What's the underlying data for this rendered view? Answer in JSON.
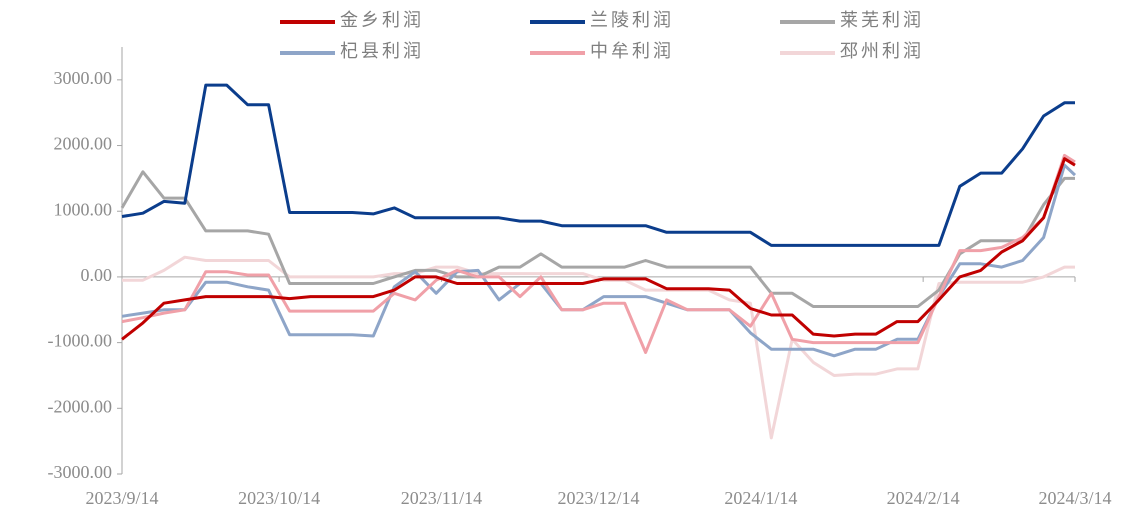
{
  "chart_data": {
    "type": "line",
    "x": [
      "2023/9/14",
      "2023/9/18",
      "2023/9/22",
      "2023/9/26",
      "2023/9/30",
      "2023/10/4",
      "2023/10/8",
      "2023/10/12",
      "2023/10/16",
      "2023/10/20",
      "2023/10/24",
      "2023/10/28",
      "2023/11/1",
      "2023/11/5",
      "2023/11/9",
      "2023/11/13",
      "2023/11/17",
      "2023/11/21",
      "2023/11/25",
      "2023/11/29",
      "2023/12/3",
      "2023/12/7",
      "2023/12/11",
      "2023/12/15",
      "2023/12/19",
      "2023/12/23",
      "2023/12/27",
      "2023/12/31",
      "2024/1/4",
      "2024/1/8",
      "2024/1/12",
      "2024/1/16",
      "2024/1/20",
      "2024/1/24",
      "2024/1/28",
      "2024/2/1",
      "2024/2/5",
      "2024/2/9",
      "2024/2/13",
      "2024/2/17",
      "2024/2/21",
      "2024/2/25",
      "2024/2/29",
      "2024/3/4",
      "2024/3/8",
      "2024/3/12",
      "2024/3/14"
    ],
    "series": [
      {
        "name": "金乡利润",
        "color": "#c00000",
        "values": [
          -950,
          -700,
          -400,
          -350,
          -300,
          -300,
          -300,
          -300,
          -330,
          -300,
          -300,
          -300,
          -300,
          -200,
          0,
          0,
          -100,
          -100,
          -100,
          -100,
          -100,
          -100,
          -100,
          -30,
          -30,
          -30,
          -180,
          -180,
          -180,
          -200,
          -480,
          -580,
          -580,
          -870,
          -900,
          -870,
          -870,
          -680,
          -680,
          -350,
          0,
          100,
          380,
          550,
          900,
          1800,
          1700
        ]
      },
      {
        "name": "兰陵利润",
        "color": "#0b3d8c",
        "values": [
          920,
          970,
          1150,
          1120,
          2920,
          2920,
          2620,
          2620,
          980,
          980,
          980,
          980,
          960,
          1050,
          900,
          900,
          900,
          900,
          900,
          850,
          850,
          780,
          780,
          780,
          780,
          780,
          680,
          680,
          680,
          680,
          680,
          480,
          480,
          480,
          480,
          480,
          480,
          480,
          480,
          480,
          1380,
          1580,
          1580,
          1950,
          2450,
          2650,
          2650
        ]
      },
      {
        "name": "莱芜利润",
        "color": "#a6a6a6",
        "values": [
          1050,
          1600,
          1200,
          1200,
          700,
          700,
          700,
          650,
          -100,
          -100,
          -100,
          -100,
          -100,
          0,
          100,
          100,
          0,
          0,
          150,
          150,
          350,
          150,
          150,
          150,
          150,
          250,
          150,
          150,
          150,
          150,
          150,
          -250,
          -250,
          -450,
          -450,
          -450,
          -450,
          -450,
          -450,
          -200,
          350,
          550,
          550,
          550,
          1100,
          1500,
          1500
        ]
      },
      {
        "name": "杞县利润",
        "color": "#8ea5c8",
        "values": [
          -600,
          -550,
          -500,
          -500,
          -80,
          -80,
          -150,
          -200,
          -880,
          -880,
          -880,
          -880,
          -900,
          -150,
          80,
          -250,
          80,
          100,
          -350,
          -100,
          -100,
          -500,
          -500,
          -300,
          -300,
          -300,
          -400,
          -500,
          -500,
          -500,
          -850,
          -1100,
          -1100,
          -1100,
          -1200,
          -1100,
          -1100,
          -950,
          -950,
          -300,
          200,
          200,
          150,
          250,
          600,
          1700,
          1550
        ]
      },
      {
        "name": "中牟利润",
        "color": "#f0a0a8",
        "values": [
          -680,
          -620,
          -550,
          -500,
          80,
          80,
          30,
          30,
          -520,
          -520,
          -520,
          -520,
          -520,
          -250,
          -350,
          -50,
          100,
          0,
          0,
          -300,
          0,
          -500,
          -500,
          -400,
          -400,
          -1150,
          -350,
          -500,
          -500,
          -500,
          -750,
          -250,
          -950,
          -1000,
          -1000,
          -1000,
          -1000,
          -1000,
          -1000,
          -300,
          400,
          400,
          450,
          600,
          900,
          1850,
          1750
        ]
      },
      {
        "name": "邳州利润",
        "color": "#f2d6d8",
        "values": [
          -50,
          -50,
          100,
          300,
          250,
          250,
          250,
          250,
          0,
          0,
          0,
          0,
          0,
          50,
          50,
          150,
          150,
          50,
          50,
          50,
          50,
          50,
          50,
          -50,
          -50,
          -200,
          -200,
          -200,
          -200,
          -350,
          -400,
          -2450,
          -950,
          -1300,
          -1500,
          -1480,
          -1480,
          -1400,
          -1400,
          -100,
          -80,
          -80,
          -80,
          -80,
          0,
          150,
          150
        ]
      }
    ],
    "xlim": [
      "2023/9/14",
      "2024/3/14"
    ],
    "xticks": [
      "2023/9/14",
      "2023/10/14",
      "2023/11/14",
      "2023/12/14",
      "2024/1/14",
      "2024/2/14",
      "2024/3/14"
    ],
    "ylim": [
      -3000,
      3500
    ],
    "yticks": [
      {
        "value": -3000,
        "label": "-3000.00"
      },
      {
        "value": -2000,
        "label": "-2000.00"
      },
      {
        "value": -1000,
        "label": "-1000.00"
      },
      {
        "value": 0,
        "label": "0.00"
      },
      {
        "value": 1000,
        "label": "1000.00"
      },
      {
        "value": 2000,
        "label": "2000.00"
      },
      {
        "value": 3000,
        "label": "3000.00"
      }
    ],
    "legend": "top"
  }
}
